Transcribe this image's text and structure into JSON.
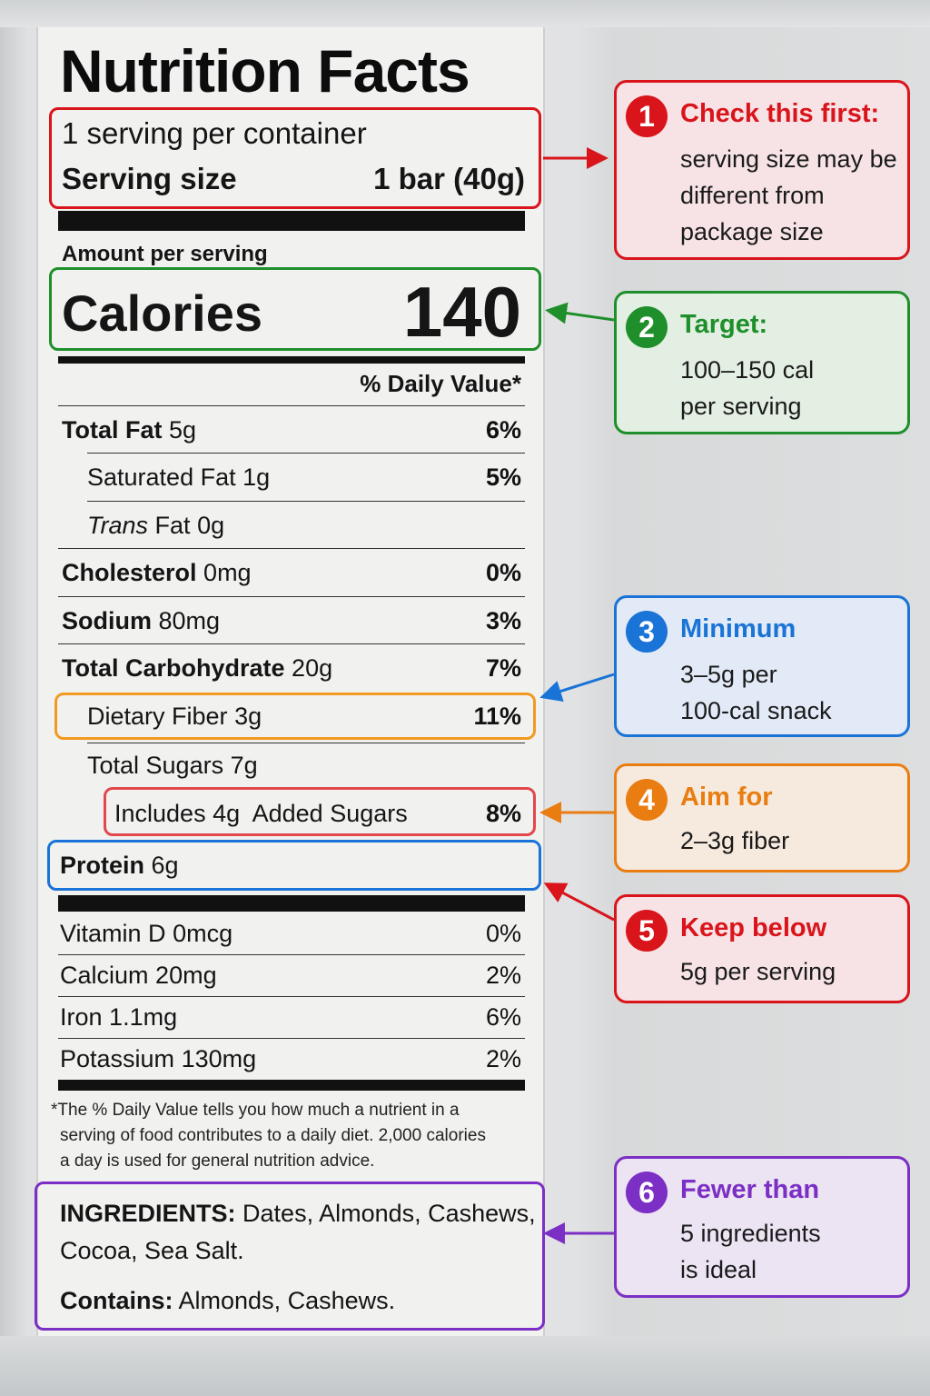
{
  "label": {
    "title": "Nutrition Facts",
    "servings_per_container": "1 serving per container",
    "serving_size_label": "Serving size",
    "serving_size_value": "1 bar (40g)",
    "amount_per_serving": "Amount per serving",
    "calories_label": "Calories",
    "calories_value": "140",
    "daily_value_header": "% Daily Value*",
    "nutrients": [
      {
        "name": "Total Fat",
        "amount": "5g",
        "dv": "6%"
      },
      {
        "name": "Saturated Fat",
        "amount": "1g",
        "dv": "5%"
      },
      {
        "name": "Trans",
        "name_rest": "Fat",
        "amount": "0g",
        "dv": ""
      },
      {
        "name": "Cholesterol",
        "amount": "0mg",
        "dv": "0%"
      },
      {
        "name": "Sodium",
        "amount": "80mg",
        "dv": "3%"
      },
      {
        "name": "Total Carbohydrate",
        "amount": "20g",
        "dv": "7%"
      },
      {
        "name": "Dietary Fiber",
        "amount": "3g",
        "dv": "11%"
      },
      {
        "name": "Total Sugars",
        "amount": "7g",
        "dv": ""
      },
      {
        "name": "Includes 4g",
        "name_rest": "Added Sugars",
        "amount": "",
        "dv": "8%"
      },
      {
        "name": "Protein",
        "amount": "6g",
        "dv": ""
      }
    ],
    "vitamins": [
      {
        "name": "Vitamin D",
        "amount": "0mcg",
        "dv": "0%"
      },
      {
        "name": "Calcium",
        "amount": "20mg",
        "dv": "2%"
      },
      {
        "name": "Iron",
        "amount": "1.1mg",
        "dv": "6%"
      },
      {
        "name": "Potassium",
        "amount": "130mg",
        "dv": "2%"
      }
    ],
    "footnote_line1": "*The % Daily Value tells you how much a nutrient in a",
    "footnote_line2": "serving of food contributes to a daily diet. 2,000 calories",
    "footnote_line3": "a day is used for general nutrition advice.",
    "ingredients_label": "INGREDIENTS:",
    "ingredients_line1": "Dates, Almonds, Cashews,",
    "ingredients_line2": "Cocoa, Sea Salt.",
    "contains_label": "Contains:",
    "contains_value": "Almonds, Cashews."
  },
  "callouts": [
    {
      "number": "1",
      "heading": "Check this first:",
      "lines": [
        "serving size may be",
        "different from",
        "package size"
      ],
      "color": "#d9141b",
      "bg": "#f7e3e5"
    },
    {
      "number": "2",
      "heading": "Target:",
      "lines": [
        "100–150 cal",
        "per serving"
      ],
      "color": "#1e8f2a",
      "bg": "#e3efe2"
    },
    {
      "number": "3",
      "heading": "Minimum",
      "lines": [
        "3–5g per",
        "100-cal snack"
      ],
      "color": "#1a73d6",
      "bg": "#e1eaf6"
    },
    {
      "number": "4",
      "heading": "Aim for",
      "lines": [
        "2–3g fiber"
      ],
      "color": "#ea7d12",
      "bg": "#f6eadf"
    },
    {
      "number": "5",
      "heading": "Keep below",
      "lines": [
        "5g per serving"
      ],
      "color": "#d9141b",
      "bg": "#f7e3e5"
    },
    {
      "number": "6",
      "heading": "Fewer than",
      "lines": [
        "5 ingredients",
        "is ideal"
      ],
      "color": "#7b2fc4",
      "bg": "#ece3f3"
    }
  ],
  "colors": {
    "red": "#d9141b",
    "green": "#1e8f2a",
    "blue": "#1a73d6",
    "orange": "#ea7d12",
    "purple": "#7b2fc4"
  }
}
